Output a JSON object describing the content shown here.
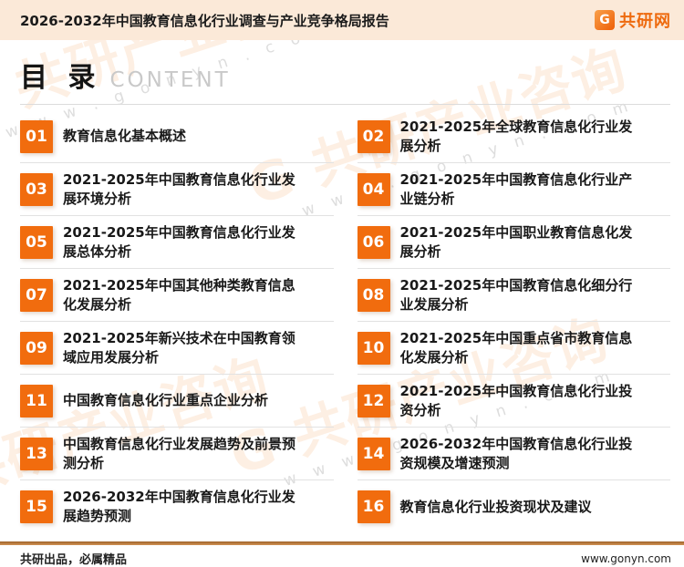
{
  "header": {
    "title": "2026-2032年中国教育信息化行业调查与产业竞争格局报告",
    "logo_icon": "G",
    "logo_text": "共研网"
  },
  "toc": {
    "title_cn": "目 录",
    "title_en": "CONTENT",
    "items": [
      {
        "num": "01",
        "text": "教育信息化基本概述"
      },
      {
        "num": "02",
        "text": "2021-2025年全球教育信息化行业发展分析"
      },
      {
        "num": "03",
        "text": "2021-2025年中国教育信息化行业发展环境分析"
      },
      {
        "num": "04",
        "text": "2021-2025年中国教育信息化行业产业链分析"
      },
      {
        "num": "05",
        "text": "2021-2025年中国教育信息化行业发展总体分析"
      },
      {
        "num": "06",
        "text": "2021-2025年中国职业教育信息化发展分析"
      },
      {
        "num": "07",
        "text": "2021-2025年中国其他种类教育信息化发展分析"
      },
      {
        "num": "08",
        "text": "2021-2025年中国教育信息化细分行业发展分析"
      },
      {
        "num": "09",
        "text": "2021-2025年新兴技术在中国教育领域应用发展分析"
      },
      {
        "num": "10",
        "text": "2021-2025年中国重点省市教育信息化发展分析"
      },
      {
        "num": "11",
        "text": "中国教育信息化行业重点企业分析"
      },
      {
        "num": "12",
        "text": "2021-2025年中国教育信息化行业投资分析"
      },
      {
        "num": "13",
        "text": "中国教育信息化行业发展趋势及前景预测分析"
      },
      {
        "num": "14",
        "text": "2026-2032年中国教育信息化行业投资规模及增速预测"
      },
      {
        "num": "15",
        "text": "2026-2032年中国教育信息化行业发展趋势预测"
      },
      {
        "num": "16",
        "text": "教育信息化行业投资现状及建议"
      }
    ]
  },
  "footer": {
    "left": "共研出品，必属精品",
    "right": "www.gonyn.com"
  },
  "watermark": {
    "logo_text": "G 共研产业咨询",
    "url_text": "w w w . g o n y n . c o m"
  },
  "colors": {
    "accent_orange": "#f16c0e",
    "header_background": "#fbe9d8",
    "footer_rule": "#b5712f",
    "divider_gray": "#e2e2e2"
  }
}
